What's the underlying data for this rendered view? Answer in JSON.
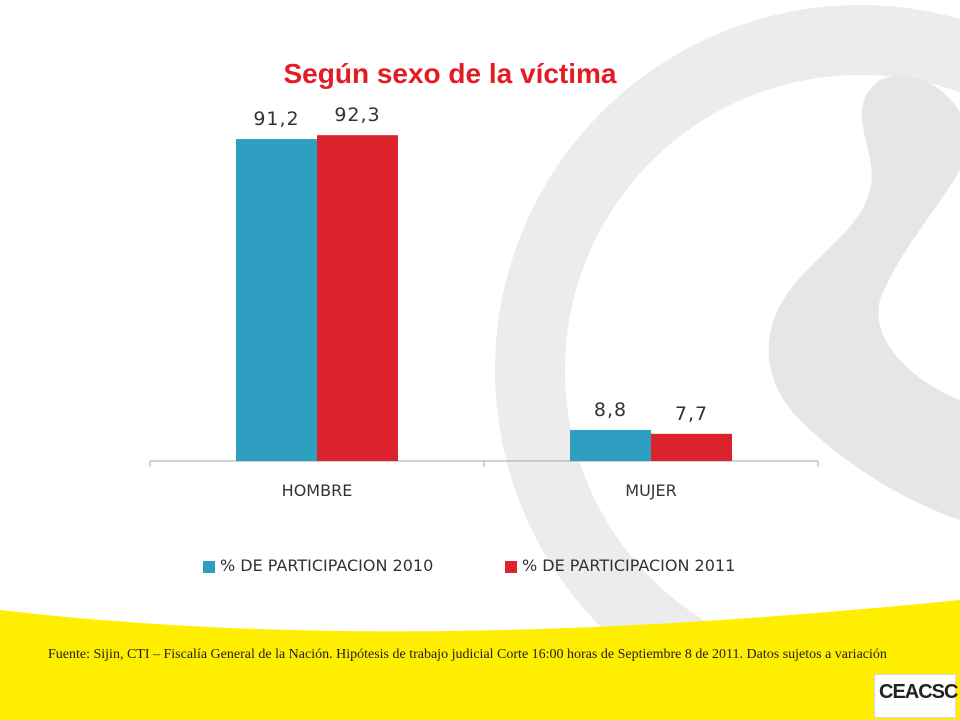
{
  "chart_data": {
    "type": "bar",
    "title": "Según sexo de la víctima",
    "categories": [
      "HOMBRE",
      "MUJER"
    ],
    "series": [
      {
        "name": "% DE PARTICIPACION 2010",
        "values": [
          91.2,
          8.8
        ],
        "labels": [
          "91,2",
          "8,8"
        ],
        "color": "#2e9fc0"
      },
      {
        "name": "% DE PARTICIPACION 2011",
        "values": [
          92.3,
          7.7
        ],
        "labels": [
          "92,3",
          "7,7"
        ],
        "color": "#dc232c"
      }
    ],
    "ylim": [
      0,
      100
    ],
    "grid": false,
    "legend_position": "bottom"
  },
  "footnote": "Fuente: Sijin, CTI – Fiscalía General de la Nación. Hipótesis de trabajo judicial Corte 16:00 horas de Septiembre 8 de 2011. Datos sujetos a variación",
  "logo": {
    "text": "CEACSC"
  },
  "colors": {
    "title": "#e31b23",
    "accent_yellow": "#ffee00",
    "deco_gray": "#e8e8e8"
  }
}
